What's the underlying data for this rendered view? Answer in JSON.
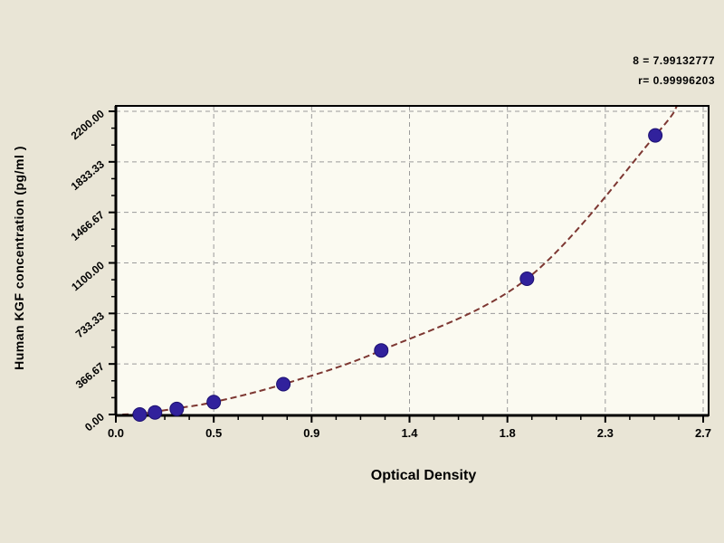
{
  "chart_data": {
    "type": "scatter",
    "title": "",
    "xlabel": "Optical Density",
    "ylabel": "Human  KGF concentration (pg/ml )",
    "stats": {
      "line1": "8 = 7.99132777",
      "line2": "r= 0.99996203"
    },
    "xlim": [
      0,
      2.73
    ],
    "ylim": [
      0,
      2240
    ],
    "grid": true,
    "legend": "none",
    "x_ticks": {
      "values": [
        0,
        0.45,
        0.9,
        1.35,
        1.8,
        2.25,
        2.7
      ],
      "labels": [
        "0.0",
        "0.5",
        "0.9",
        "1.4",
        "1.8",
        "2.3",
        "2.7"
      ],
      "minor_per_major": 3
    },
    "y_ticks": {
      "values": [
        0,
        366.67,
        733.33,
        1100,
        1466.67,
        1833.33,
        2200
      ],
      "labels": [
        "0.00",
        "366.67",
        "733.33",
        "1100.00",
        "1466.67",
        "1833.33",
        "2200.00"
      ],
      "minor_per_major": 2
    },
    "points": [
      [
        0.11,
        0
      ],
      [
        0.18,
        15
      ],
      [
        0.28,
        40
      ],
      [
        0.45,
        90
      ],
      [
        0.77,
        220
      ],
      [
        1.22,
        465
      ],
      [
        1.89,
        985
      ],
      [
        2.48,
        2025
      ]
    ],
    "trendline": [
      [
        0.03,
        0
      ],
      [
        0.11,
        5
      ],
      [
        0.18,
        20
      ],
      [
        0.28,
        45
      ],
      [
        0.45,
        90
      ],
      [
        0.77,
        220
      ],
      [
        1.22,
        465
      ],
      [
        1.89,
        985
      ],
      [
        2.48,
        2025
      ],
      [
        2.58,
        2240
      ]
    ],
    "colors": {
      "marker": "#31219c",
      "line": "#7d3732",
      "grid": "#9b9b9b",
      "plot_bg": "#fbfaf1",
      "frame": "#000000",
      "page_bg": "#e9e5d6",
      "text": "#000000"
    }
  }
}
